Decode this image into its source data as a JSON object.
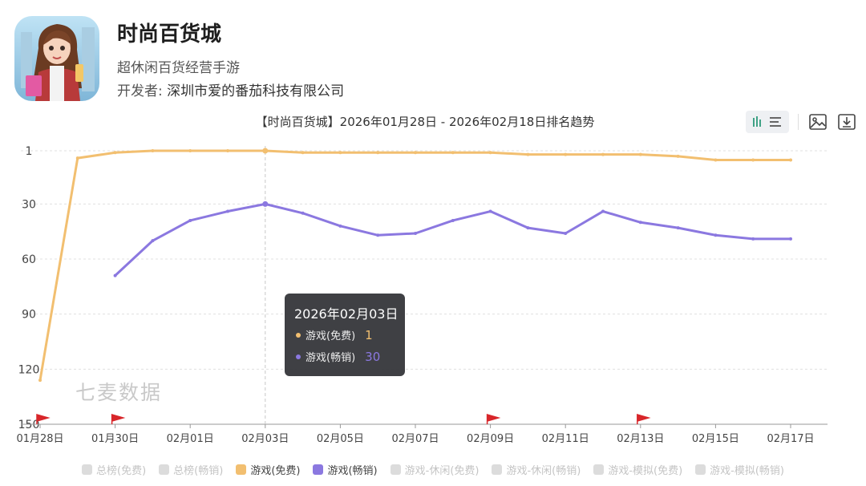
{
  "app": {
    "name": "时尚百货城",
    "subtitle": "超休闲百货经营手游",
    "developer_label": "开发者:",
    "developer": "深圳市爱的番茄科技有限公司"
  },
  "colors": {
    "free": "#f2bf70",
    "grossing": "#8b78e0",
    "grid": "#e0e0e0",
    "flag": "#d8262a"
  },
  "watermark": "七麦数据",
  "tooltip": {
    "date": "2026年02月03日",
    "rows": [
      {
        "label": "游戏(免费)",
        "value": "1",
        "color": "#f2bf70"
      },
      {
        "label": "游戏(畅销)",
        "value": "30",
        "color": "#8b78e0"
      }
    ]
  },
  "legend": [
    {
      "label": "总榜(免费)",
      "active": false
    },
    {
      "label": "总榜(畅销)",
      "active": false
    },
    {
      "label": "游戏(免费)",
      "active": true,
      "color": "#f2bf70"
    },
    {
      "label": "游戏(畅销)",
      "active": true,
      "color": "#8b78e0"
    },
    {
      "label": "游戏-休闲(免费)",
      "active": false
    },
    {
      "label": "游戏-休闲(畅销)",
      "active": false
    },
    {
      "label": "游戏-模拟(免费)",
      "active": false
    },
    {
      "label": "游戏-模拟(畅销)",
      "active": false
    }
  ],
  "toolbar": {
    "toggle_icon": "bar-list-toggle-icon",
    "image_icon": "image-icon",
    "download_icon": "download-icon"
  },
  "chart_data": {
    "type": "line",
    "title": "【时尚百货城】2026年01月28日 - 2026年02月18日排名趋势",
    "y_inverted": true,
    "ylim": [
      1,
      150
    ],
    "yticks": [
      1,
      30,
      60,
      90,
      120,
      150
    ],
    "x": [
      "01月28日",
      "01月29日",
      "01月30日",
      "01月31日",
      "02月01日",
      "02月02日",
      "02月03日",
      "02月04日",
      "02月05日",
      "02月06日",
      "02月07日",
      "02月08日",
      "02月09日",
      "02月10日",
      "02月11日",
      "02月12日",
      "02月13日",
      "02月14日",
      "02月15日",
      "02月16日",
      "02月17日"
    ],
    "xtick_labels": [
      "01月28日",
      "01月30日",
      "02月01日",
      "02月03日",
      "02月05日",
      "02月07日",
      "02月09日",
      "02月11日",
      "02月13日",
      "02月15日",
      "02月17日"
    ],
    "flags": [
      "01月28日",
      "01月30日",
      "02月09日",
      "02月13日"
    ],
    "crosshair": "02月03日",
    "grid": true,
    "legend_position": "bottom",
    "series": [
      {
        "name": "游戏(免费)",
        "color": "#f2bf70",
        "values": [
          126,
          5,
          2,
          1,
          1,
          1,
          1,
          2,
          2,
          2,
          2,
          2,
          2,
          3,
          3,
          3,
          3,
          4,
          6,
          6,
          6
        ]
      },
      {
        "name": "游戏(畅销)",
        "color": "#8b78e0",
        "values": [
          null,
          null,
          69,
          50,
          39,
          34,
          30,
          35,
          42,
          47,
          46,
          39,
          34,
          43,
          46,
          34,
          40,
          43,
          47,
          49,
          49
        ]
      }
    ]
  }
}
